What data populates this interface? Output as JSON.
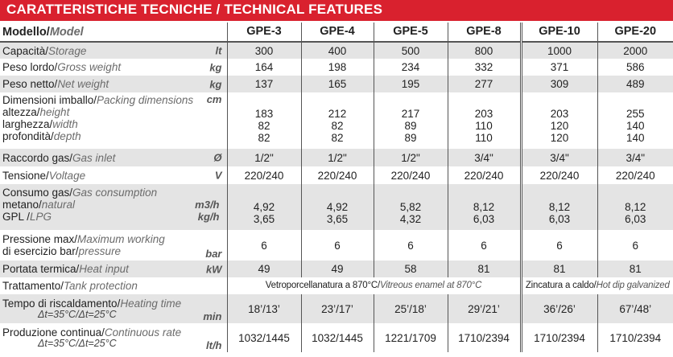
{
  "header": {
    "title_it": "CARATTERISTICHE TECNICHE",
    "separator": "/",
    "title_en": "TECHNICAL FEATURES"
  },
  "models_label": {
    "it": "Modello/",
    "en": "Model"
  },
  "models": [
    "GPE-3",
    "GPE-4",
    "GPE-5",
    "GPE-8",
    "GPE-10",
    "GPE-20"
  ],
  "rows": {
    "storage": {
      "it": "Capacità/",
      "en": "Storage",
      "unit": "lt",
      "values": [
        "300",
        "400",
        "500",
        "800",
        "1000",
        "2000"
      ]
    },
    "gross": {
      "it": "Peso lordo/",
      "en": "Gross weight",
      "unit": "kg",
      "values": [
        "164",
        "198",
        "234",
        "332",
        "371",
        "586"
      ]
    },
    "net": {
      "it": "Peso netto/",
      "en": "Net weight",
      "unit": "kg",
      "values": [
        "137",
        "165",
        "195",
        "277",
        "309",
        "489"
      ]
    },
    "packing": {
      "it": "Dimensioni imballo/",
      "en": "Packing dimensions",
      "unit": "cm",
      "lines": [
        {
          "it": "altezza/",
          "en": "height"
        },
        {
          "it": "larghezza/",
          "en": "width"
        },
        {
          "it": "profondità/",
          "en": "depth"
        }
      ],
      "values": [
        [
          "183",
          "82",
          "82"
        ],
        [
          "212",
          "82",
          "82"
        ],
        [
          "217",
          "89",
          "89"
        ],
        [
          "203",
          "110",
          "110"
        ],
        [
          "203",
          "120",
          "120"
        ],
        [
          "255",
          "140",
          "140"
        ]
      ]
    },
    "gas_inlet": {
      "it": "Raccordo gas/",
      "en": "Gas inlet",
      "unit": "Ø",
      "values": [
        "1/2\"",
        "1/2\"",
        "1/2\"",
        "3/4\"",
        "3/4\"",
        "3/4\""
      ]
    },
    "voltage": {
      "it": "Tensione/",
      "en": "Voltage",
      "unit": "V",
      "values": [
        "220/240",
        "220/240",
        "220/240",
        "220/240",
        "220/240",
        "220/240"
      ]
    },
    "consumption": {
      "it": "Consumo gas/",
      "en": "Gas consumption",
      "line1": {
        "it": "metano/",
        "en": "natural",
        "unit": "m3/h"
      },
      "line2": {
        "it": "GPL /",
        "en": "LPG",
        "unit": "kg/h"
      },
      "values": [
        [
          "4,92",
          "3,65"
        ],
        [
          "4,92",
          "3,65"
        ],
        [
          "5,82",
          "4,32"
        ],
        [
          "8,12",
          "6,03"
        ],
        [
          "8,12",
          "6,03"
        ],
        [
          "8,12",
          "6,03"
        ]
      ]
    },
    "pressure": {
      "it": "Pressione max/",
      "en": "Maximum working",
      "it2": "di esercizio bar/",
      "en2": "pressure",
      "unit": "bar",
      "values": [
        "6",
        "6",
        "6",
        "6",
        "6",
        "6"
      ]
    },
    "heat_input": {
      "it": "Portata termica/",
      "en": "Heat input",
      "unit": "kW",
      "values": [
        "49",
        "49",
        "58",
        "81",
        "81",
        "81"
      ]
    },
    "tank": {
      "it": "Trattamento/",
      "en": "Tank protection",
      "left_it": "Vetroporcellanatura a 870°C/",
      "left_en": "Vitreous enamel at 870°C",
      "right_it": "Zincatura a caldo/",
      "right_en": "Hot dip galvanized"
    },
    "heating_time": {
      "it": "Tempo di riscaldamento/",
      "en": "Heating time",
      "sub": "Δt=35°C/Δt=25°C",
      "unit": "min",
      "values": [
        "18’/13’",
        "23’/17’",
        "25’/18’",
        "29’/21’",
        "36’/26’",
        "67’/48’"
      ]
    },
    "continuous": {
      "it": "Produzione continua/",
      "en": "Continuous rate",
      "sub": "Δt=35°C/Δt=25°C",
      "unit": "lt/h",
      "values": [
        "1032/1445",
        "1032/1445",
        "1221/1709",
        "1710/2394",
        "1710/2394",
        "1710/2394"
      ]
    }
  }
}
